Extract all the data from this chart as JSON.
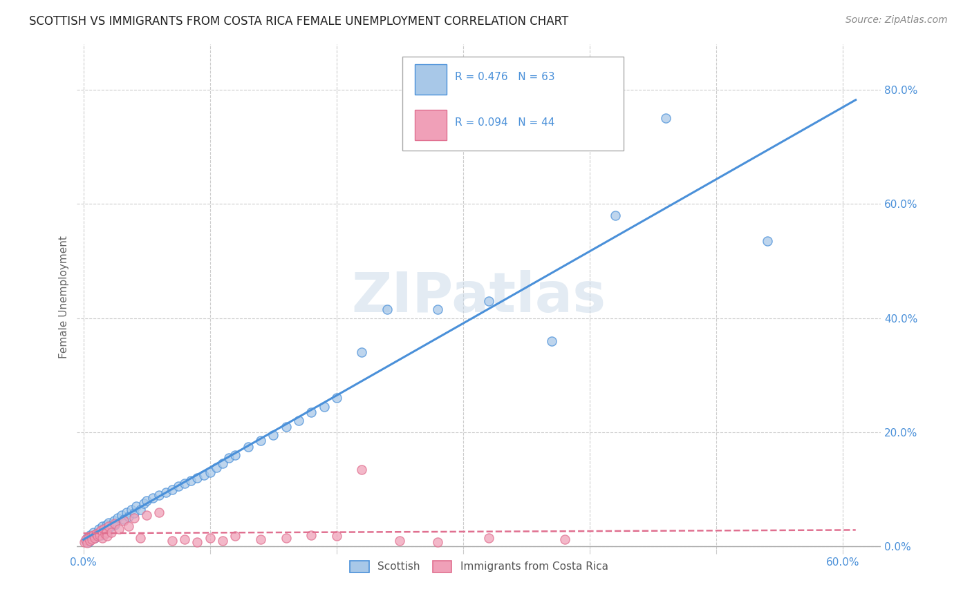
{
  "title": "SCOTTISH VS IMMIGRANTS FROM COSTA RICA FEMALE UNEMPLOYMENT CORRELATION CHART",
  "source": "Source: ZipAtlas.com",
  "ylabel": "Female Unemployment",
  "xlim": [
    -0.005,
    0.63
  ],
  "ylim": [
    -0.005,
    0.88
  ],
  "color_scottish": "#a8c8e8",
  "color_cr": "#f0a0b8",
  "color_line_scottish": "#4a90d9",
  "color_line_cr": "#e07090",
  "watermark": "ZIPatlas",
  "scottish_x": [
    0.002,
    0.003,
    0.004,
    0.005,
    0.006,
    0.007,
    0.008,
    0.009,
    0.01,
    0.011,
    0.012,
    0.013,
    0.014,
    0.015,
    0.016,
    0.017,
    0.018,
    0.019,
    0.02,
    0.022,
    0.024,
    0.025,
    0.027,
    0.03,
    0.032,
    0.034,
    0.036,
    0.038,
    0.04,
    0.042,
    0.045,
    0.048,
    0.05,
    0.055,
    0.06,
    0.065,
    0.07,
    0.075,
    0.08,
    0.085,
    0.09,
    0.095,
    0.1,
    0.105,
    0.11,
    0.115,
    0.12,
    0.13,
    0.14,
    0.15,
    0.16,
    0.17,
    0.18,
    0.19,
    0.2,
    0.22,
    0.24,
    0.28,
    0.32,
    0.37,
    0.42,
    0.46,
    0.54
  ],
  "scottish_y": [
    0.01,
    0.015,
    0.008,
    0.02,
    0.012,
    0.018,
    0.025,
    0.015,
    0.022,
    0.018,
    0.03,
    0.025,
    0.02,
    0.035,
    0.028,
    0.032,
    0.038,
    0.025,
    0.042,
    0.035,
    0.045,
    0.038,
    0.05,
    0.055,
    0.048,
    0.06,
    0.052,
    0.065,
    0.058,
    0.07,
    0.065,
    0.075,
    0.08,
    0.085,
    0.09,
    0.095,
    0.1,
    0.105,
    0.11,
    0.115,
    0.12,
    0.125,
    0.13,
    0.138,
    0.145,
    0.155,
    0.16,
    0.175,
    0.185,
    0.195,
    0.21,
    0.22,
    0.235,
    0.245,
    0.26,
    0.34,
    0.415,
    0.415,
    0.43,
    0.36,
    0.58,
    0.75,
    0.535
  ],
  "cr_x": [
    0.001,
    0.002,
    0.003,
    0.004,
    0.005,
    0.006,
    0.007,
    0.008,
    0.009,
    0.01,
    0.011,
    0.012,
    0.013,
    0.014,
    0.015,
    0.016,
    0.017,
    0.018,
    0.019,
    0.02,
    0.022,
    0.025,
    0.028,
    0.032,
    0.036,
    0.04,
    0.045,
    0.05,
    0.06,
    0.07,
    0.08,
    0.09,
    0.1,
    0.11,
    0.12,
    0.14,
    0.16,
    0.18,
    0.2,
    0.22,
    0.25,
    0.28,
    0.32,
    0.38
  ],
  "cr_y": [
    0.008,
    0.012,
    0.006,
    0.015,
    0.01,
    0.018,
    0.012,
    0.02,
    0.015,
    0.022,
    0.018,
    0.025,
    0.02,
    0.028,
    0.015,
    0.03,
    0.022,
    0.025,
    0.018,
    0.035,
    0.025,
    0.04,
    0.03,
    0.045,
    0.035,
    0.05,
    0.015,
    0.055,
    0.06,
    0.01,
    0.012,
    0.008,
    0.015,
    0.01,
    0.018,
    0.012,
    0.015,
    0.02,
    0.018,
    0.135,
    0.01,
    0.008,
    0.015,
    0.012
  ],
  "xtick_positions": [
    0.0,
    0.1,
    0.2,
    0.3,
    0.4,
    0.5,
    0.6
  ],
  "xtick_labels_show": [
    "0.0%",
    "",
    "",
    "",
    "",
    "",
    "60.0%"
  ],
  "ytick_positions": [
    0.0,
    0.2,
    0.4,
    0.6,
    0.8
  ],
  "ytick_labels": [
    "0.0%",
    "20.0%",
    "40.0%",
    "60.0%",
    "80.0%"
  ]
}
